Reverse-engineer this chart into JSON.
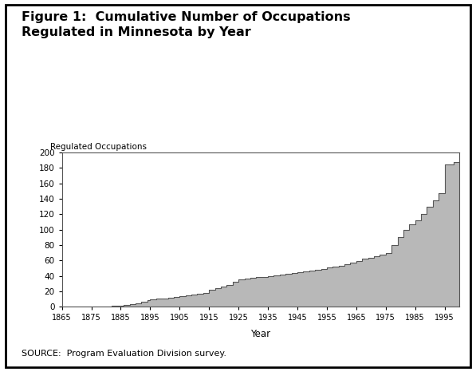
{
  "title_line1": "Figure 1:  Cumulative Number of Occupations",
  "title_line2": "Regulated in Minnesota by Year",
  "ylabel": "Regulated Occupations",
  "xlabel": "Year",
  "source_text": "SOURCE:  Program Evaluation Division survey.",
  "fill_color": "#b8b8b8",
  "line_color": "#555555",
  "background_color": "#ffffff",
  "xlim": [
    1865,
    2000
  ],
  "ylim": [
    0,
    200
  ],
  "xticks": [
    1865,
    1875,
    1885,
    1895,
    1905,
    1915,
    1925,
    1935,
    1945,
    1955,
    1965,
    1975,
    1985,
    1995
  ],
  "yticks": [
    0,
    20,
    40,
    60,
    80,
    100,
    120,
    140,
    160,
    180,
    200
  ],
  "years": [
    1865,
    1882,
    1883,
    1886,
    1888,
    1890,
    1892,
    1894,
    1895,
    1897,
    1899,
    1901,
    1903,
    1905,
    1907,
    1909,
    1911,
    1913,
    1915,
    1917,
    1919,
    1921,
    1923,
    1925,
    1927,
    1929,
    1931,
    1933,
    1935,
    1937,
    1939,
    1941,
    1943,
    1945,
    1947,
    1949,
    1951,
    1953,
    1955,
    1957,
    1959,
    1961,
    1963,
    1965,
    1967,
    1969,
    1971,
    1973,
    1975,
    1977,
    1979,
    1981,
    1983,
    1985,
    1987,
    1989,
    1991,
    1993,
    1995,
    1998
  ],
  "values": [
    0,
    1,
    2,
    3,
    4,
    5,
    7,
    9,
    10,
    11,
    11,
    12,
    13,
    14,
    15,
    16,
    17,
    18,
    22,
    24,
    26,
    28,
    33,
    36,
    37,
    38,
    39,
    39,
    40,
    41,
    42,
    43,
    44,
    45,
    46,
    47,
    48,
    49,
    51,
    52,
    53,
    55,
    57,
    59,
    62,
    64,
    66,
    68,
    70,
    80,
    90,
    100,
    107,
    112,
    120,
    130,
    138,
    147,
    185,
    188
  ]
}
